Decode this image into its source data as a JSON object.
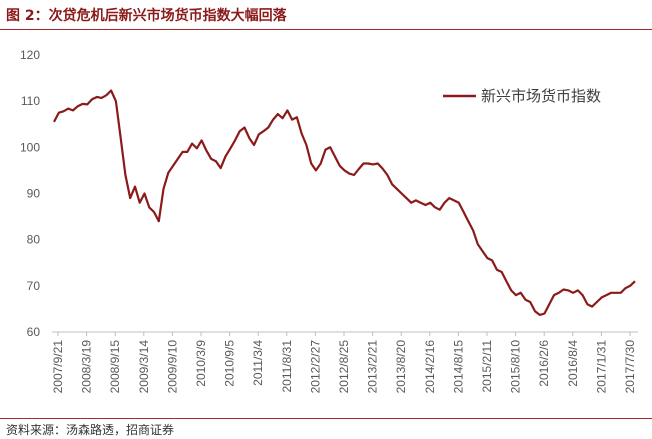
{
  "header": {
    "title": "图 2：次贷危机后新兴市场货币指数大幅回落"
  },
  "footer": {
    "source": "资料来源：汤森路透，招商证券"
  },
  "chart_data": {
    "type": "line",
    "title": "",
    "xlabel": "",
    "ylabel": "",
    "ylim": [
      60,
      120
    ],
    "yticks": [
      60,
      70,
      80,
      90,
      100,
      110,
      120
    ],
    "grid": false,
    "legend_position": "top-right",
    "x_tick_labels": [
      "2007/9/21",
      "2008/3/19",
      "2008/9/15",
      "2009/3/14",
      "2009/9/10",
      "2010/3/9",
      "2010/9/5",
      "2011/3/4",
      "2011/8/31",
      "2012/2/27",
      "2012/8/25",
      "2013/2/21",
      "2013/8/20",
      "2014/2/16",
      "2014/8/15",
      "2015/2/11",
      "2015/8/10",
      "2016/2/6",
      "2016/8/4",
      "2017/1/31",
      "2017/7/30"
    ],
    "line_color": "#8b1a1a",
    "series": [
      {
        "name": "新兴市场货币指数",
        "values": [
          105.5,
          107.5,
          107.8,
          108.4,
          108.0,
          108.9,
          109.4,
          109.3,
          110.4,
          110.9,
          110.7,
          111.3,
          112.3,
          110.0,
          102.0,
          94.0,
          89.0,
          91.5,
          88.0,
          90.0,
          87.0,
          86.0,
          84.0,
          91.0,
          94.5,
          96.0,
          97.5,
          99.0,
          99.0,
          100.8,
          99.8,
          101.5,
          99.3,
          97.5,
          97.0,
          95.5,
          98.0,
          99.7,
          101.5,
          103.5,
          104.3,
          102.0,
          100.5,
          102.8,
          103.5,
          104.3,
          106.0,
          107.2,
          106.3,
          108.0,
          106.0,
          106.5,
          103.0,
          100.5,
          96.5,
          95.0,
          96.5,
          99.5,
          100.0,
          98.0,
          96.0,
          95.0,
          94.3,
          94.0,
          95.3,
          96.5,
          96.5,
          96.3,
          96.5,
          95.4,
          94.0,
          92.0,
          91.0,
          90.0,
          89.0,
          88.0,
          88.5,
          88.0,
          87.5,
          88.0,
          87.0,
          86.5,
          88.0,
          89.0,
          88.5,
          88.0,
          86.0,
          84.0,
          82.0,
          79.0,
          77.5,
          76.0,
          75.5,
          73.5,
          73.0,
          71.0,
          69.0,
          68.0,
          68.5,
          67.0,
          66.5,
          64.5,
          63.7,
          64.0,
          66.0,
          68.0,
          68.5,
          69.2,
          69.0,
          68.5,
          69.0,
          68.0,
          66.0,
          65.5,
          66.5,
          67.5,
          68.0,
          68.5,
          68.5,
          68.5,
          69.5,
          70.0,
          71.0
        ]
      }
    ]
  }
}
